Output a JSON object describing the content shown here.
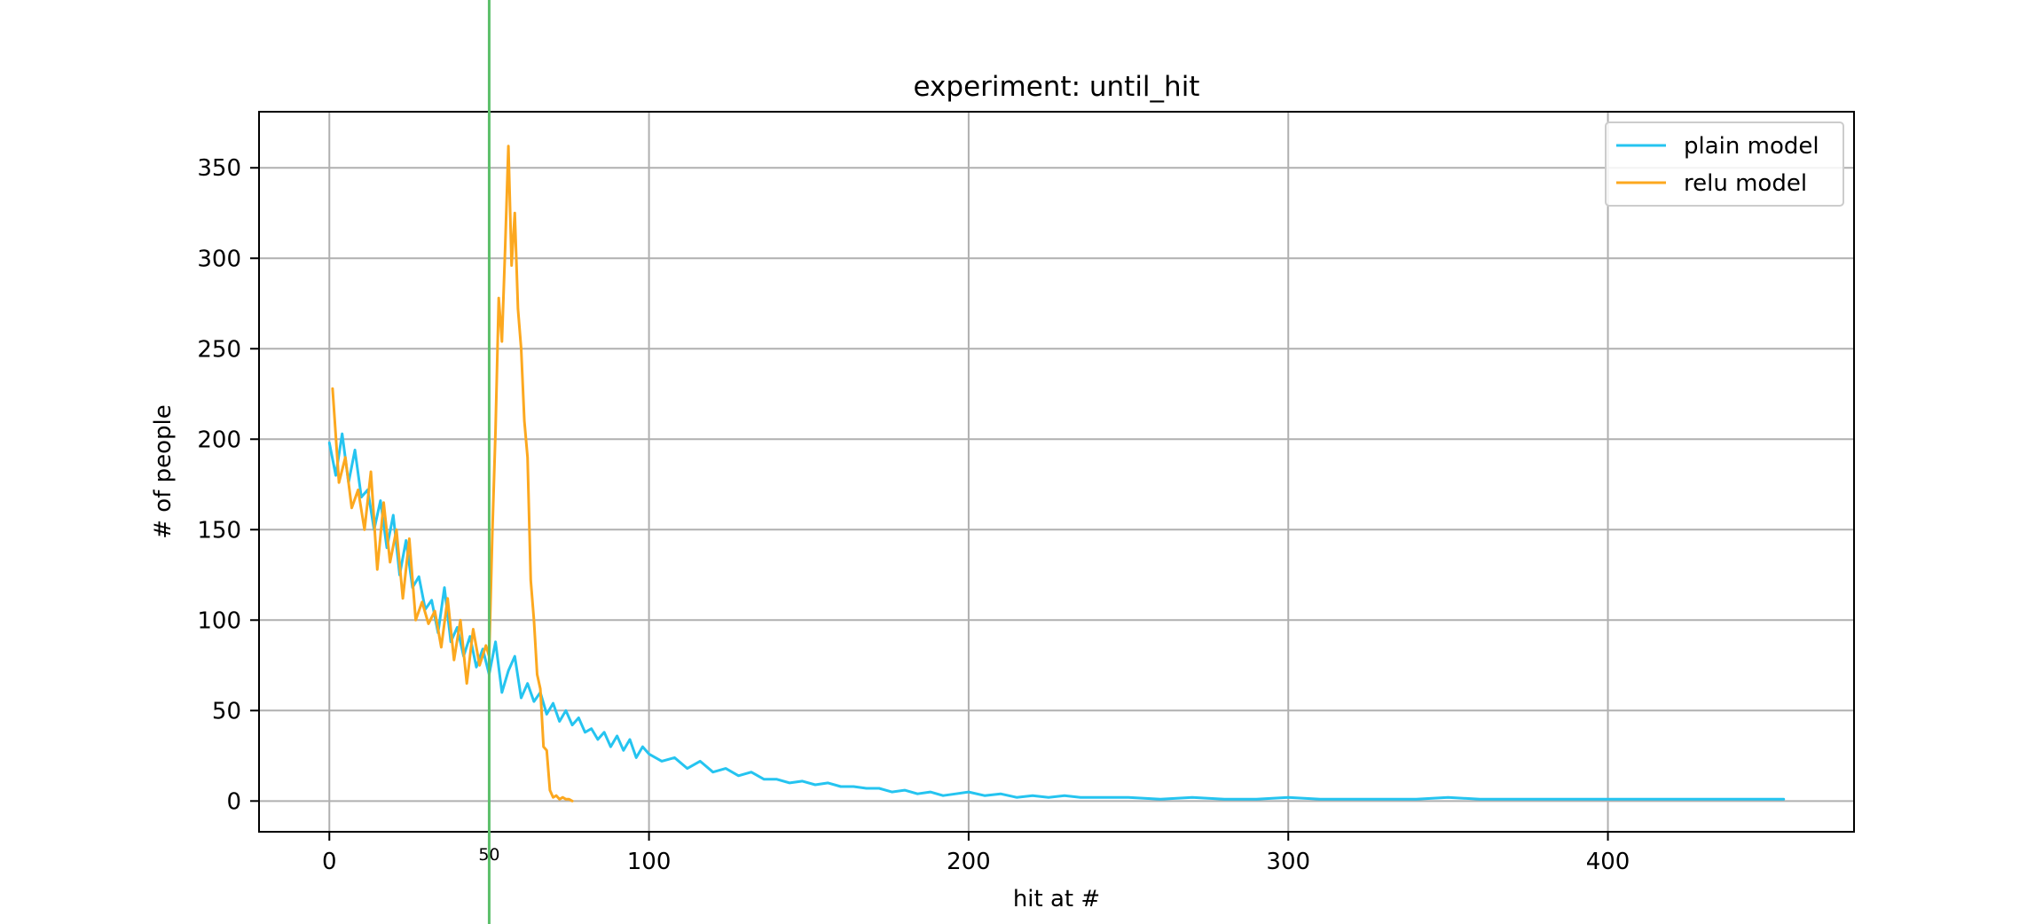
{
  "chart_data": {
    "type": "line",
    "title": "experiment: until_hit",
    "xlabel": "hit at #",
    "ylabel": "# of people",
    "xlim": [
      -22,
      477
    ],
    "ylim": [
      -17,
      381
    ],
    "xticks": [
      0,
      100,
      200,
      300,
      400
    ],
    "yticks": [
      0,
      50,
      100,
      150,
      200,
      250,
      300,
      350
    ],
    "grid": true,
    "legend_position": "top-right",
    "reference_line": {
      "x": 50,
      "label": "50",
      "color": "#5bbf6a"
    },
    "series": [
      {
        "name": "plain model",
        "color": "#25c4f0",
        "x": [
          0,
          2,
          4,
          6,
          8,
          10,
          12,
          14,
          16,
          18,
          20,
          22,
          24,
          26,
          28,
          30,
          32,
          34,
          36,
          38,
          40,
          42,
          44,
          46,
          48,
          50,
          52,
          54,
          56,
          58,
          60,
          62,
          64,
          66,
          68,
          70,
          72,
          74,
          76,
          78,
          80,
          82,
          84,
          86,
          88,
          90,
          92,
          94,
          96,
          98,
          100,
          104,
          108,
          112,
          116,
          120,
          124,
          128,
          132,
          136,
          140,
          144,
          148,
          152,
          156,
          160,
          164,
          168,
          172,
          176,
          180,
          184,
          188,
          192,
          196,
          200,
          205,
          210,
          215,
          220,
          225,
          230,
          235,
          240,
          245,
          250,
          260,
          270,
          280,
          290,
          300,
          310,
          320,
          330,
          340,
          350,
          360,
          370,
          380,
          390,
          400,
          420,
          440,
          455
        ],
        "y": [
          198,
          180,
          203,
          176,
          194,
          168,
          172,
          150,
          166,
          140,
          158,
          125,
          144,
          118,
          124,
          106,
          111,
          93,
          118,
          88,
          96,
          80,
          91,
          74,
          84,
          70,
          88,
          60,
          72,
          80,
          57,
          65,
          55,
          60,
          48,
          54,
          44,
          50,
          42,
          46,
          38,
          40,
          34,
          38,
          30,
          36,
          28,
          34,
          24,
          30,
          26,
          22,
          24,
          18,
          22,
          16,
          18,
          14,
          16,
          12,
          12,
          10,
          11,
          9,
          10,
          8,
          8,
          7,
          7,
          5,
          6,
          4,
          5,
          3,
          4,
          5,
          3,
          4,
          2,
          3,
          2,
          3,
          2,
          2,
          2,
          2,
          1,
          2,
          1,
          1,
          2,
          1,
          1,
          1,
          1,
          2,
          1,
          1,
          1,
          1,
          1,
          1,
          1,
          1
        ]
      },
      {
        "name": "relu model",
        "color": "#fca81f",
        "x": [
          1,
          3,
          5,
          7,
          9,
          11,
          13,
          15,
          17,
          19,
          21,
          23,
          25,
          27,
          29,
          31,
          33,
          35,
          37,
          39,
          41,
          43,
          45,
          47,
          49,
          50,
          51,
          52,
          53,
          54,
          55,
          56,
          57,
          58,
          59,
          60,
          61,
          62,
          63,
          64,
          65,
          66,
          67,
          68,
          69,
          70,
          71,
          72,
          73,
          74,
          75,
          76
        ],
        "y": [
          228,
          176,
          190,
          162,
          172,
          150,
          182,
          128,
          165,
          132,
          150,
          112,
          145,
          100,
          110,
          98,
          105,
          85,
          112,
          78,
          100,
          65,
          95,
          75,
          86,
          80,
          148,
          205,
          278,
          254,
          305,
          362,
          296,
          325,
          272,
          250,
          210,
          190,
          122,
          100,
          70,
          62,
          30,
          28,
          6,
          2,
          3,
          1,
          2,
          1,
          1,
          0
        ]
      }
    ]
  }
}
